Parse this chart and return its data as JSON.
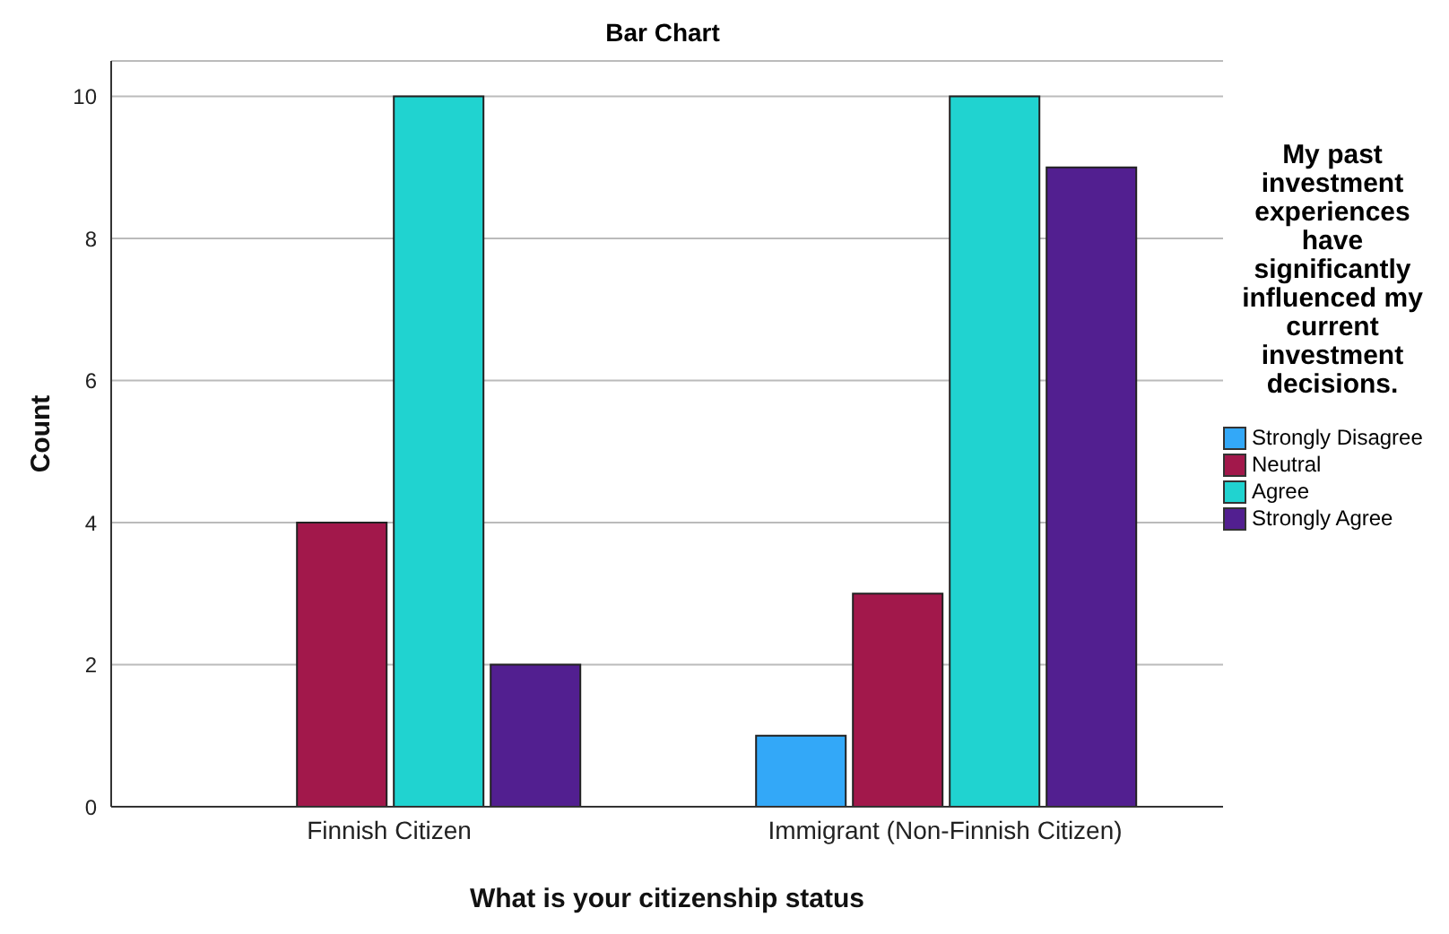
{
  "chart_data": {
    "type": "bar",
    "title": "Bar Chart",
    "xlabel": "What is your citizenship status",
    "ylabel": "Count",
    "legend_title": "My past investment experiences have significantly influenced my current investment decisions.",
    "categories": [
      "Finnish Citizen",
      "Immigrant (Non-Finnish Citizen)"
    ],
    "series": [
      {
        "name": "Strongly Disagree",
        "color": "#33a8f8",
        "values": [
          null,
          1
        ]
      },
      {
        "name": "Neutral",
        "color": "#a2184b",
        "values": [
          4,
          3
        ]
      },
      {
        "name": "Agree",
        "color": "#20d3d0",
        "values": [
          10,
          10
        ]
      },
      {
        "name": "Strongly Agree",
        "color": "#521f90",
        "values": [
          2,
          9
        ]
      }
    ],
    "ylim": [
      0,
      10.5
    ],
    "yticks": [
      0,
      2,
      4,
      6,
      8,
      10
    ],
    "grid": "y",
    "legend": "right"
  }
}
